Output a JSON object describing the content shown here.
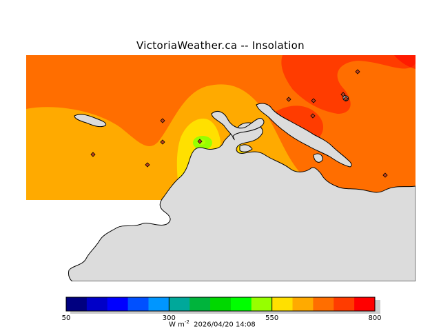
{
  "title": "VictoriaWeather.ca -- Insolation",
  "legend": {
    "colors": [
      "#000080",
      "#0000c8",
      "#0000ff",
      "#0050ff",
      "#0096ff",
      "#00a89a",
      "#00b43c",
      "#00d800",
      "#00ff00",
      "#96ff00",
      "#ffe000",
      "#ffaa00",
      "#ff6e00",
      "#ff3c00",
      "#ff0000"
    ],
    "tick_labels": [
      "50",
      "300",
      "550",
      "800"
    ],
    "units_base": "W m",
    "units_exponent": "-2",
    "timestamp": "2026/04/20 14:08"
  },
  "map": {
    "land_color": "#dcdcdc",
    "coast_color": "#000000",
    "station_markers": 12
  }
}
